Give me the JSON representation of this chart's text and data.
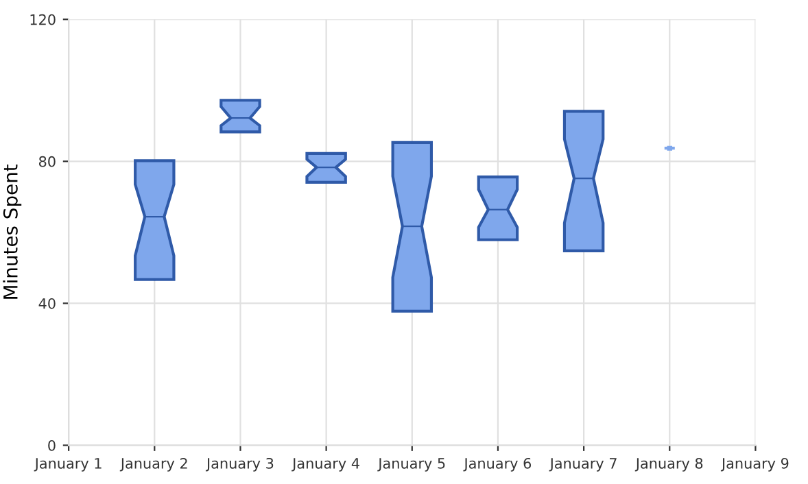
{
  "chart_data": {
    "type": "box",
    "ylabel": "Minutes Spent",
    "categories": [
      "January 1",
      "January 2",
      "January 3",
      "January 4",
      "January 5",
      "January 6",
      "January 7",
      "January 8",
      "January 9"
    ],
    "boxes": [
      null,
      {
        "low": 46.7,
        "q1": 46.7,
        "median": 64.4,
        "q3": 80.2,
        "high": 80.2
      },
      {
        "low": 88.3,
        "q1": 88.3,
        "median": 92.2,
        "q3": 97.2,
        "high": 97.2
      },
      {
        "low": 74.1,
        "q1": 74.1,
        "median": 78.3,
        "q3": 82.2,
        "high": 82.2
      },
      {
        "low": 37.8,
        "q1": 37.8,
        "median": 61.7,
        "q3": 85.3,
        "high": 85.3
      },
      {
        "low": 57.9,
        "q1": 57.9,
        "median": 66.4,
        "q3": 75.6,
        "high": 75.6
      },
      {
        "low": 54.8,
        "q1": 54.8,
        "median": 75.2,
        "q3": 94.1,
        "high": 94.1
      },
      {
        "low": 83.7,
        "q1": 83.7,
        "median": 83.7,
        "q3": 83.7,
        "high": 83.7
      },
      null
    ],
    "color": "#7fa7ec",
    "ylim": [
      0,
      120
    ],
    "yticks": [
      0,
      40,
      80,
      120
    ],
    "grid": true
  }
}
